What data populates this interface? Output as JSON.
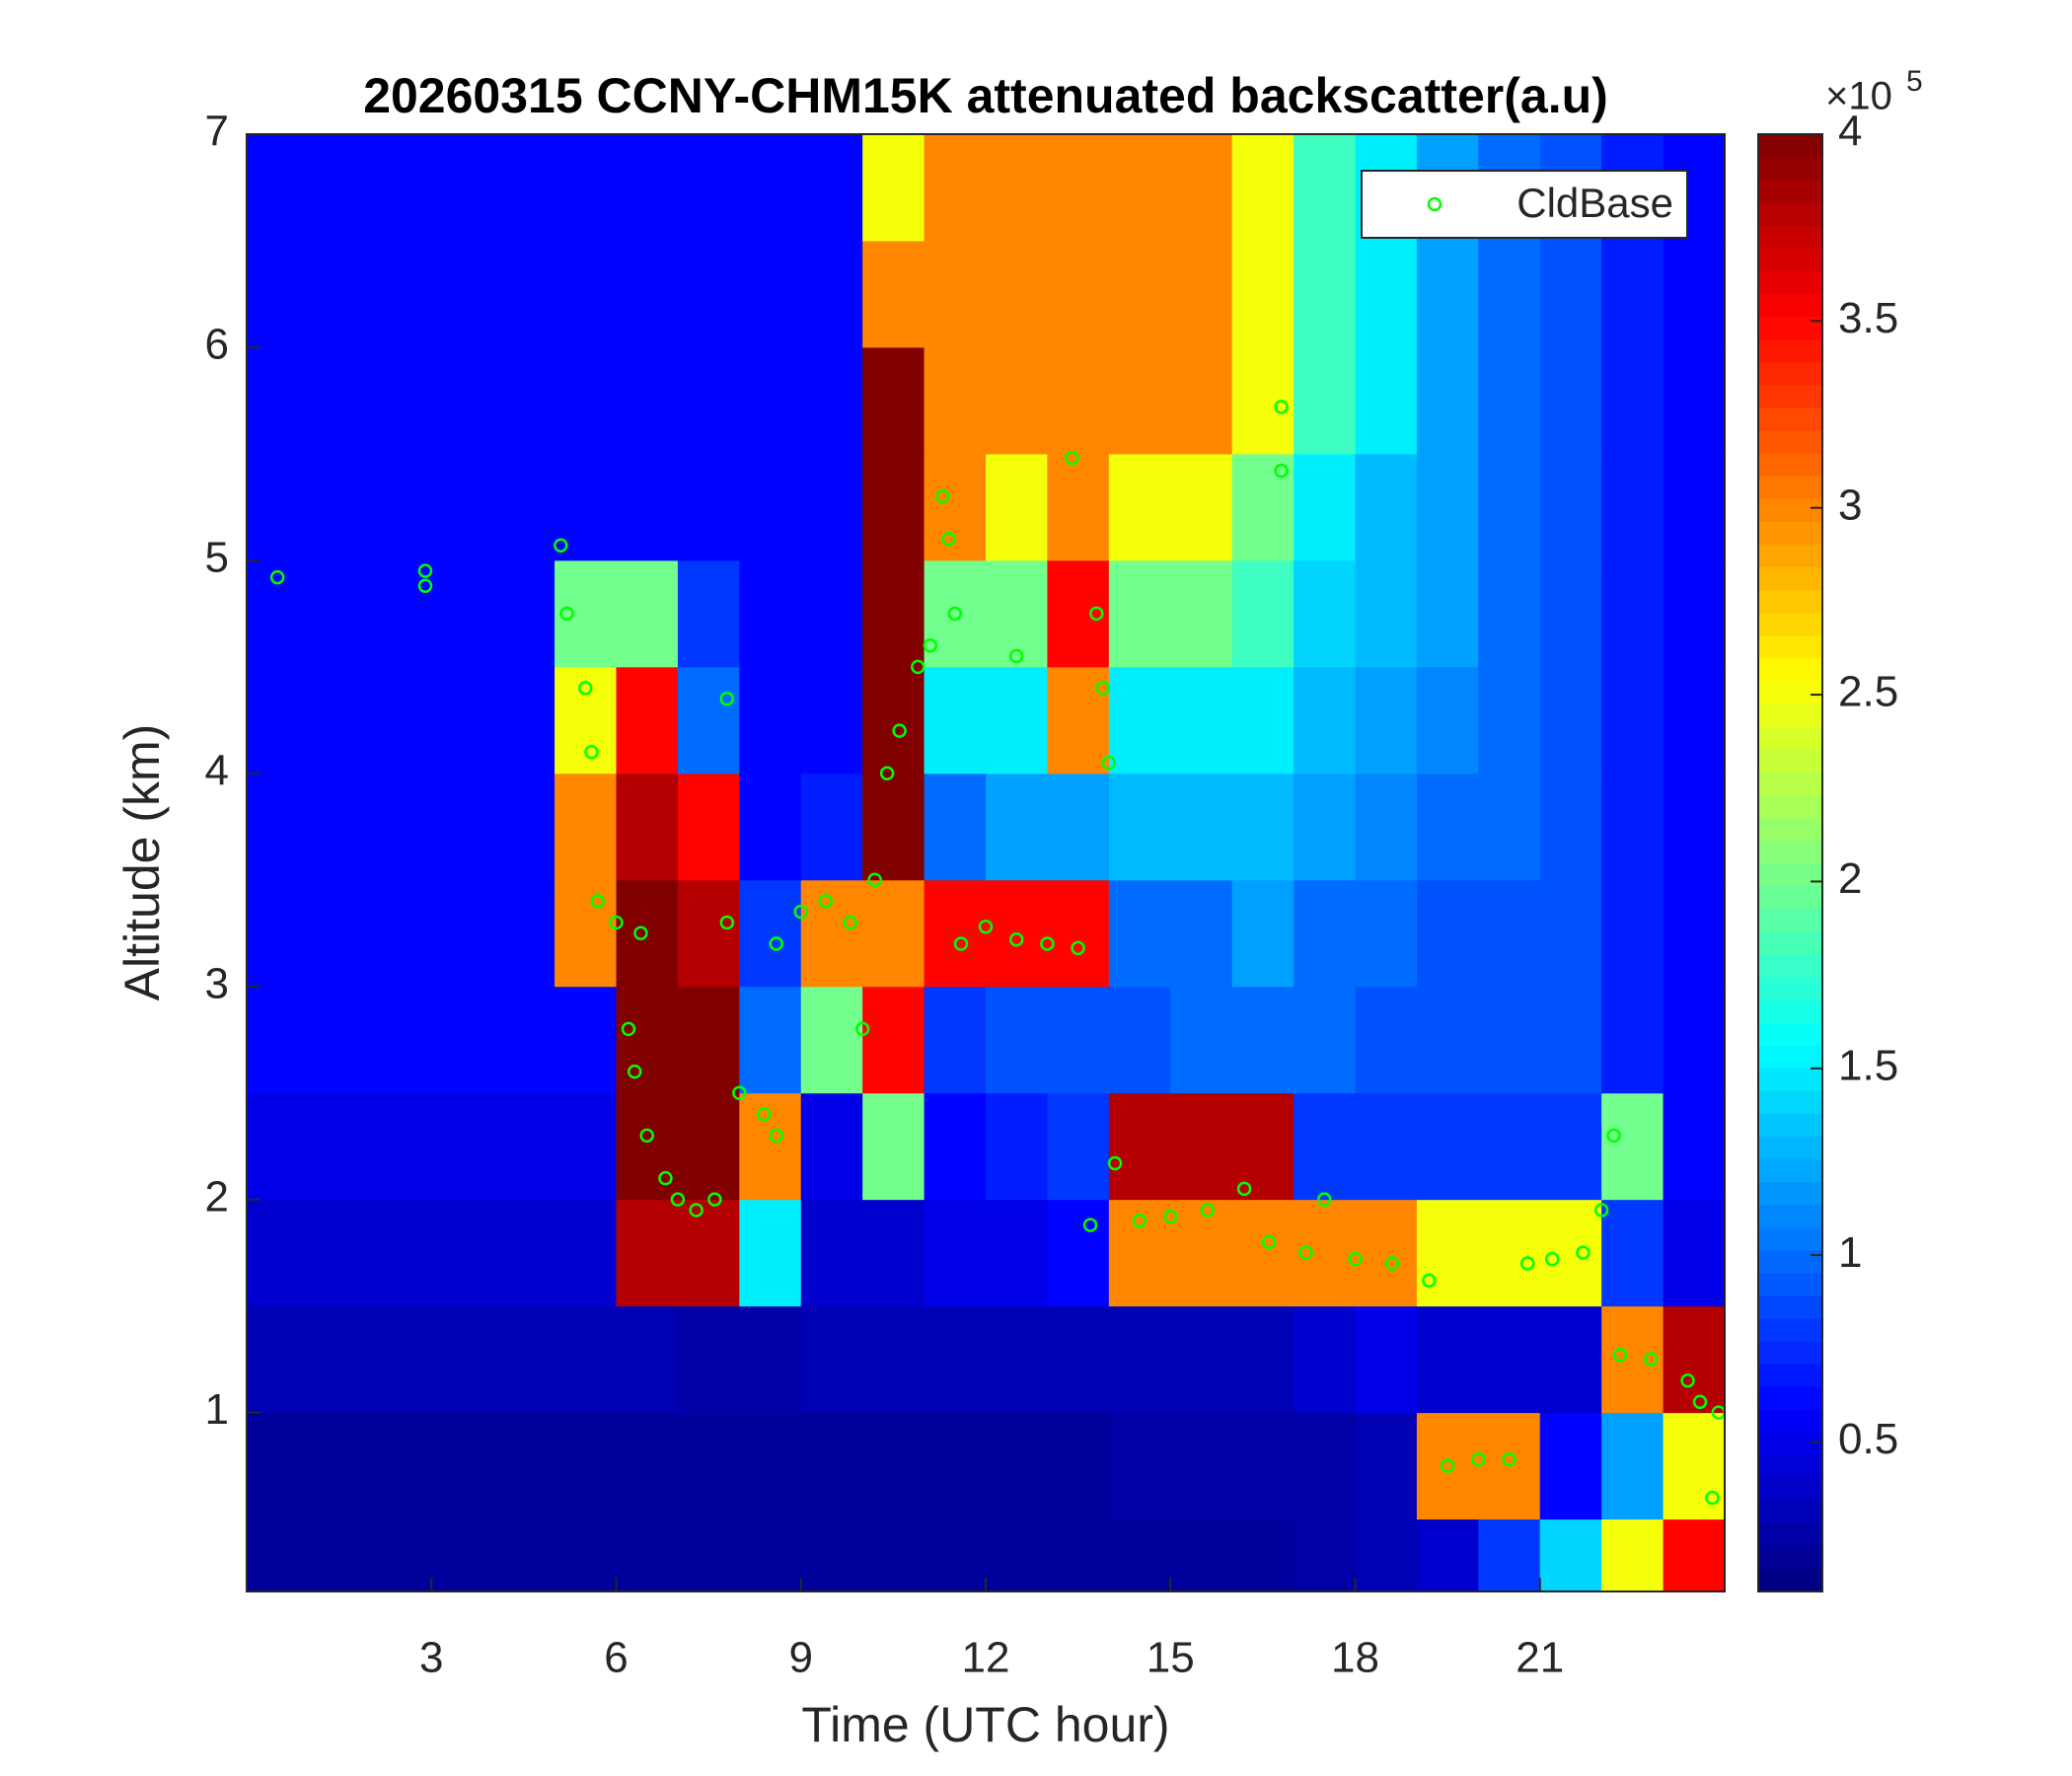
{
  "chart_data": {
    "type": "heatmap",
    "title": "20260315 CCNY-CHM15K attenuated backscatter(a.u)",
    "xlabel": "Time (UTC hour)",
    "ylabel": "Altitude (km)",
    "xlim": [
      0,
      24
    ],
    "xticks": [
      3,
      6,
      9,
      12,
      15,
      18,
      21
    ],
    "ylim": [
      0.16,
      7
    ],
    "yticks": [
      1,
      2,
      3,
      4,
      5,
      6,
      7
    ],
    "xbins": [
      0,
      1,
      2,
      3,
      4,
      5,
      6,
      7,
      8,
      9,
      10,
      11,
      12,
      13,
      14,
      15,
      16,
      17,
      18,
      19,
      20,
      21,
      22,
      23,
      24
    ],
    "ybins": [
      0,
      0.5,
      1,
      1.5,
      2,
      2.5,
      3,
      3.5,
      4,
      4.5,
      5,
      5.5,
      6,
      6.5,
      7
    ],
    "z": [
      [
        20000,
        20000,
        20000,
        20000,
        20000,
        20000,
        20000,
        20000,
        20000,
        20000,
        20000,
        20000,
        20000,
        20000,
        20000,
        20000,
        20000,
        25000,
        30000,
        40000,
        80000,
        140000,
        250000,
        350000
      ],
      [
        20000,
        20000,
        20000,
        20000,
        20000,
        20000,
        20000,
        20000,
        20000,
        20000,
        20000,
        20000,
        20000,
        20000,
        25000,
        25000,
        25000,
        25000,
        30000,
        300000,
        300000,
        60000,
        120000,
        250000
      ],
      [
        30000,
        30000,
        30000,
        30000,
        30000,
        30000,
        30000,
        25000,
        25000,
        30000,
        30000,
        30000,
        30000,
        30000,
        30000,
        30000,
        30000,
        40000,
        50000,
        40000,
        40000,
        40000,
        300000,
        380000
      ],
      [
        40000,
        40000,
        40000,
        40000,
        40000,
        40000,
        380000,
        380000,
        150000,
        40000,
        40000,
        50000,
        50000,
        60000,
        300000,
        300000,
        300000,
        300000,
        300000,
        250000,
        250000,
        250000,
        80000,
        50000
      ],
      [
        50000,
        50000,
        50000,
        50000,
        50000,
        50000,
        400000,
        400000,
        300000,
        50000,
        200000,
        60000,
        70000,
        80000,
        380000,
        380000,
        380000,
        80000,
        80000,
        80000,
        80000,
        80000,
        200000,
        60000
      ],
      [
        60000,
        60000,
        60000,
        60000,
        60000,
        60000,
        400000,
        400000,
        100000,
        200000,
        350000,
        80000,
        90000,
        90000,
        90000,
        100000,
        100000,
        100000,
        90000,
        90000,
        90000,
        90000,
        70000,
        60000
      ],
      [
        60000,
        60000,
        60000,
        60000,
        60000,
        300000,
        400000,
        380000,
        80000,
        300000,
        300000,
        350000,
        350000,
        350000,
        100000,
        100000,
        120000,
        100000,
        100000,
        90000,
        90000,
        90000,
        70000,
        60000
      ],
      [
        60000,
        60000,
        60000,
        60000,
        60000,
        300000,
        380000,
        350000,
        60000,
        70000,
        400000,
        100000,
        120000,
        120000,
        130000,
        130000,
        130000,
        120000,
        110000,
        100000,
        100000,
        90000,
        70000,
        60000
      ],
      [
        60000,
        60000,
        60000,
        60000,
        60000,
        250000,
        350000,
        100000,
        60000,
        60000,
        400000,
        150000,
        150000,
        300000,
        150000,
        150000,
        150000,
        130000,
        120000,
        110000,
        100000,
        90000,
        70000,
        60000
      ],
      [
        60000,
        60000,
        60000,
        60000,
        60000,
        200000,
        200000,
        80000,
        60000,
        60000,
        400000,
        200000,
        200000,
        350000,
        200000,
        200000,
        180000,
        140000,
        130000,
        120000,
        100000,
        90000,
        70000,
        60000
      ],
      [
        60000,
        60000,
        60000,
        60000,
        60000,
        60000,
        60000,
        60000,
        60000,
        60000,
        400000,
        300000,
        250000,
        300000,
        250000,
        250000,
        200000,
        150000,
        130000,
        120000,
        100000,
        90000,
        70000,
        60000
      ],
      [
        60000,
        60000,
        60000,
        60000,
        60000,
        60000,
        60000,
        60000,
        60000,
        60000,
        400000,
        300000,
        300000,
        300000,
        300000,
        300000,
        250000,
        180000,
        150000,
        120000,
        100000,
        90000,
        70000,
        60000
      ],
      [
        60000,
        60000,
        60000,
        60000,
        60000,
        60000,
        60000,
        60000,
        60000,
        60000,
        300000,
        300000,
        300000,
        300000,
        300000,
        300000,
        250000,
        180000,
        150000,
        120000,
        100000,
        90000,
        70000,
        60000
      ],
      [
        60000,
        60000,
        60000,
        60000,
        60000,
        60000,
        60000,
        60000,
        60000,
        60000,
        250000,
        300000,
        300000,
        300000,
        300000,
        300000,
        250000,
        180000,
        150000,
        120000,
        100000,
        90000,
        70000,
        60000
      ]
    ],
    "colormap": "jet",
    "clim": [
      10000,
      400000
    ],
    "cticks": [
      {
        "value": 50000,
        "label": "0.5"
      },
      {
        "value": 100000,
        "label": "1"
      },
      {
        "value": 150000,
        "label": "1.5"
      },
      {
        "value": 200000,
        "label": "2"
      },
      {
        "value": 250000,
        "label": "2.5"
      },
      {
        "value": 300000,
        "label": "3"
      },
      {
        "value": 350000,
        "label": "3.5"
      },
      {
        "value": 400000,
        "label": "4"
      }
    ],
    "cbar_multiplier": "×10",
    "cbar_exponent": "5",
    "legend": "upper right",
    "series": [
      {
        "name": "CldBase",
        "type": "scatter",
        "color": "#00ff00",
        "x": [
          0.5,
          2.9,
          2.9,
          5.1,
          5.2,
          5.5,
          5.6,
          5.7,
          6.0,
          6.4,
          6.2,
          6.3,
          6.5,
          6.8,
          7.0,
          7.3,
          7.6,
          7.8,
          7.8,
          8.0,
          8.4,
          8.6,
          8.6,
          9.0,
          9.4,
          9.8,
          10.0,
          10.2,
          10.4,
          10.6,
          10.9,
          11.1,
          11.3,
          11.4,
          11.5,
          11.6,
          12.0,
          12.5,
          12.5,
          13.0,
          13.4,
          13.5,
          13.8,
          13.9,
          14.0,
          14.1,
          13.7,
          14.5,
          15.0,
          15.6,
          16.2,
          16.6,
          16.8,
          16.8,
          17.2,
          17.5,
          18.0,
          18.6,
          19.2,
          19.5,
          20.0,
          20.5,
          20.8,
          21.2,
          21.7,
          22.0,
          22.2,
          22.3,
          22.8,
          23.4,
          23.6,
          23.9,
          23.8
        ],
        "y": [
          4.92,
          4.95,
          4.88,
          5.07,
          4.75,
          4.4,
          4.1,
          3.4,
          3.3,
          3.25,
          2.8,
          2.6,
          2.3,
          2.1,
          2.0,
          1.95,
          2.0,
          4.35,
          3.3,
          2.5,
          2.4,
          2.3,
          3.2,
          3.35,
          3.4,
          3.3,
          2.8,
          3.5,
          4.0,
          4.2,
          4.5,
          4.6,
          5.3,
          5.1,
          4.75,
          3.2,
          3.28,
          4.55,
          3.22,
          3.2,
          5.48,
          3.18,
          4.75,
          4.4,
          4.05,
          2.17,
          1.88,
          1.9,
          1.92,
          1.95,
          2.05,
          1.8,
          5.72,
          5.42,
          1.75,
          2.0,
          1.72,
          1.7,
          1.62,
          0.75,
          0.78,
          0.78,
          1.7,
          1.72,
          1.75,
          1.95,
          2.3,
          1.27,
          1.25,
          1.15,
          1.05,
          1.0,
          0.6
        ]
      }
    ]
  }
}
